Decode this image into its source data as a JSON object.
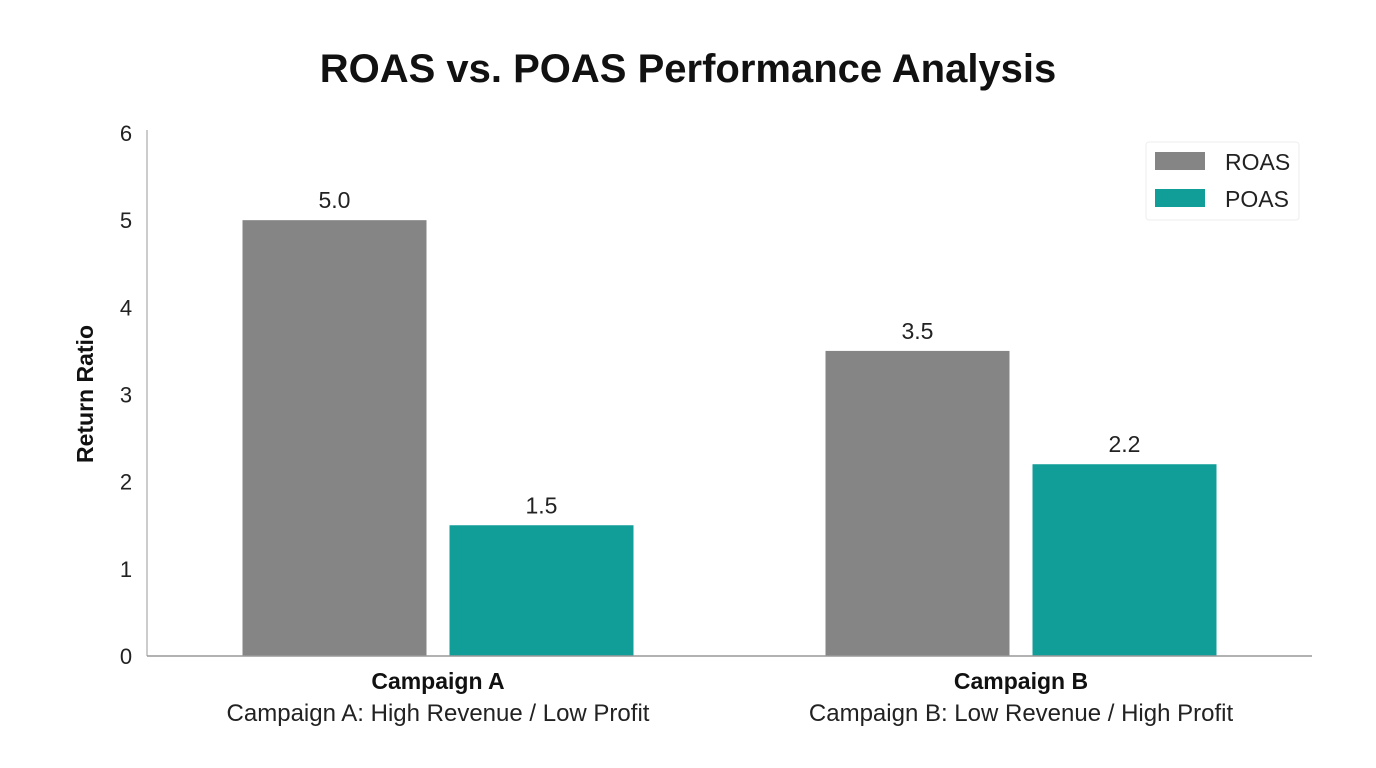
{
  "chart_data": {
    "type": "bar",
    "title": "ROAS vs. POAS Performance Analysis",
    "xlabel": "",
    "ylabel": "Return Ratio",
    "ylim": [
      0,
      6
    ],
    "yticks": [
      "0",
      "1",
      "2",
      "3",
      "4",
      "5",
      "6"
    ],
    "grid": false,
    "legend_placement": "top-right",
    "categories": [
      "Campaign A",
      "Campaign B"
    ],
    "category_subtitles": [
      "Campaign A: High Revenue / Low Profit",
      "Campaign B: Low Revenue / High Profit"
    ],
    "series": [
      {
        "name": "ROAS",
        "values": [
          5.0,
          3.5
        ],
        "labels": [
          "5.0",
          "3.5"
        ],
        "color": "#858585"
      },
      {
        "name": "POAS",
        "values": [
          1.5,
          2.2
        ],
        "labels": [
          "1.5",
          "2.2"
        ],
        "color": "#129e98"
      }
    ]
  }
}
